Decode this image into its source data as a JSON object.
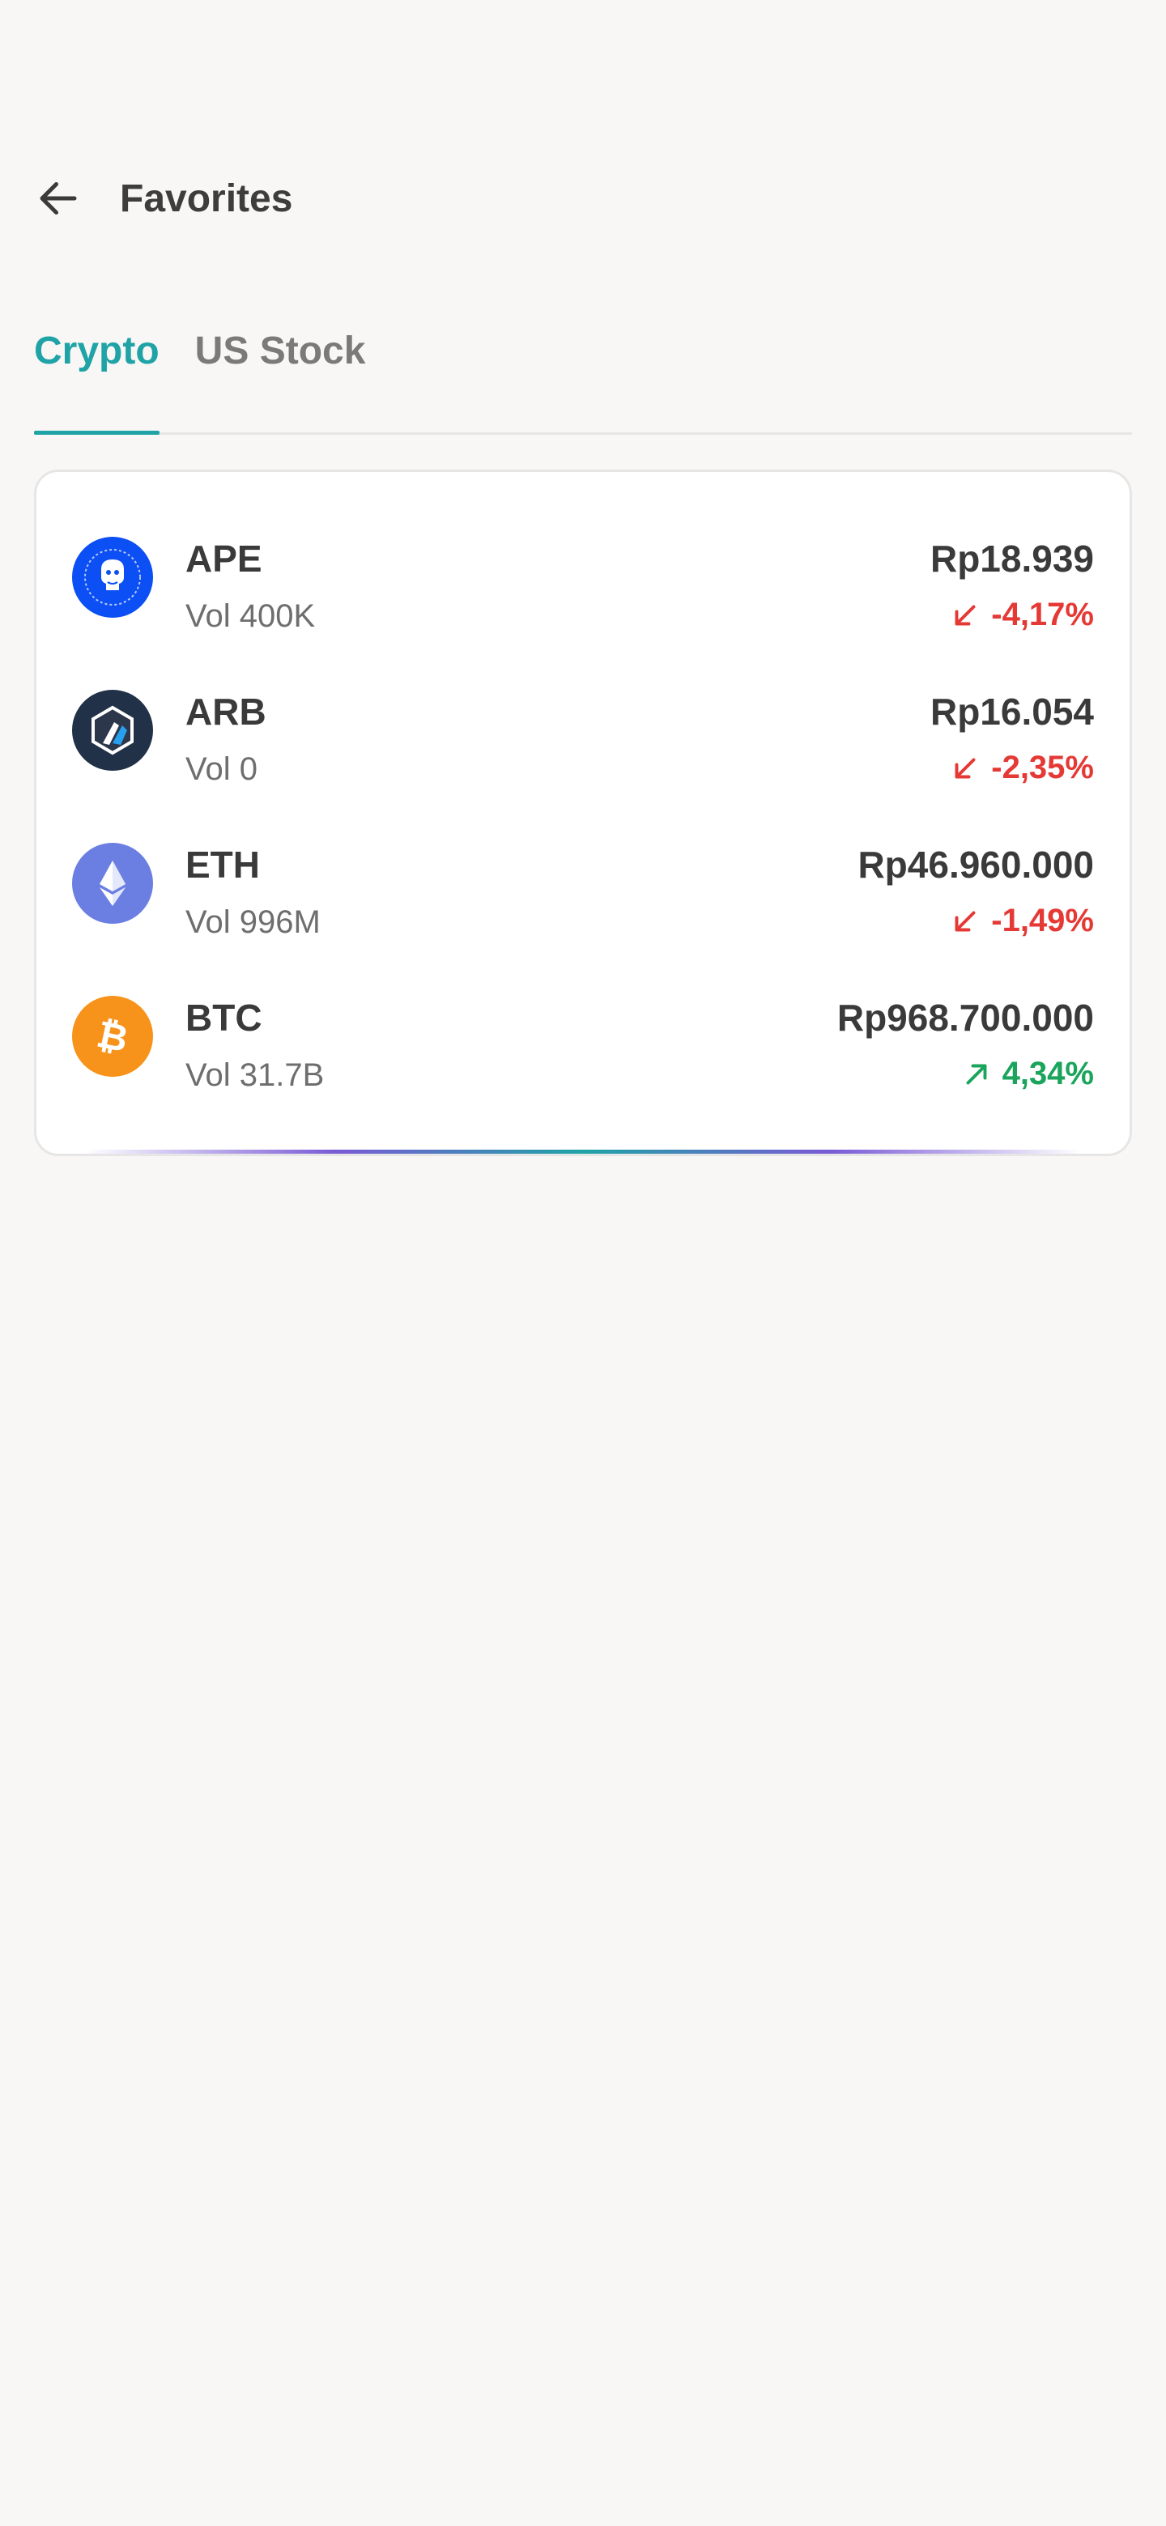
{
  "header": {
    "title": "Favorites",
    "back_icon": "arrow-left-icon"
  },
  "tabs": [
    {
      "label": "Crypto",
      "active": true
    },
    {
      "label": "US Stock",
      "active": false
    }
  ],
  "colors": {
    "accent": "#1fa3a6",
    "negative": "#e53935",
    "positive": "#1aa45c"
  },
  "assets": [
    {
      "symbol": "APE",
      "volume": "Vol 400K",
      "price": "Rp18.939",
      "change": "-4,17%",
      "direction": "down",
      "icon": "apecoin-logo-icon",
      "icon_color": "#0b4ff5"
    },
    {
      "symbol": "ARB",
      "volume": "Vol 0",
      "price": "Rp16.054",
      "change": "-2,35%",
      "direction": "down",
      "icon": "arbitrum-logo-icon",
      "icon_color": "#213147"
    },
    {
      "symbol": "ETH",
      "volume": "Vol 996M",
      "price": "Rp46.960.000",
      "change": "-1,49%",
      "direction": "down",
      "icon": "ethereum-logo-icon",
      "icon_color": "#6b7fe3"
    },
    {
      "symbol": "BTC",
      "volume": "Vol 31.7B",
      "price": "Rp968.700.000",
      "change": "4,34%",
      "direction": "up",
      "icon": "bitcoin-logo-icon",
      "icon_color": "#f7931a"
    }
  ]
}
